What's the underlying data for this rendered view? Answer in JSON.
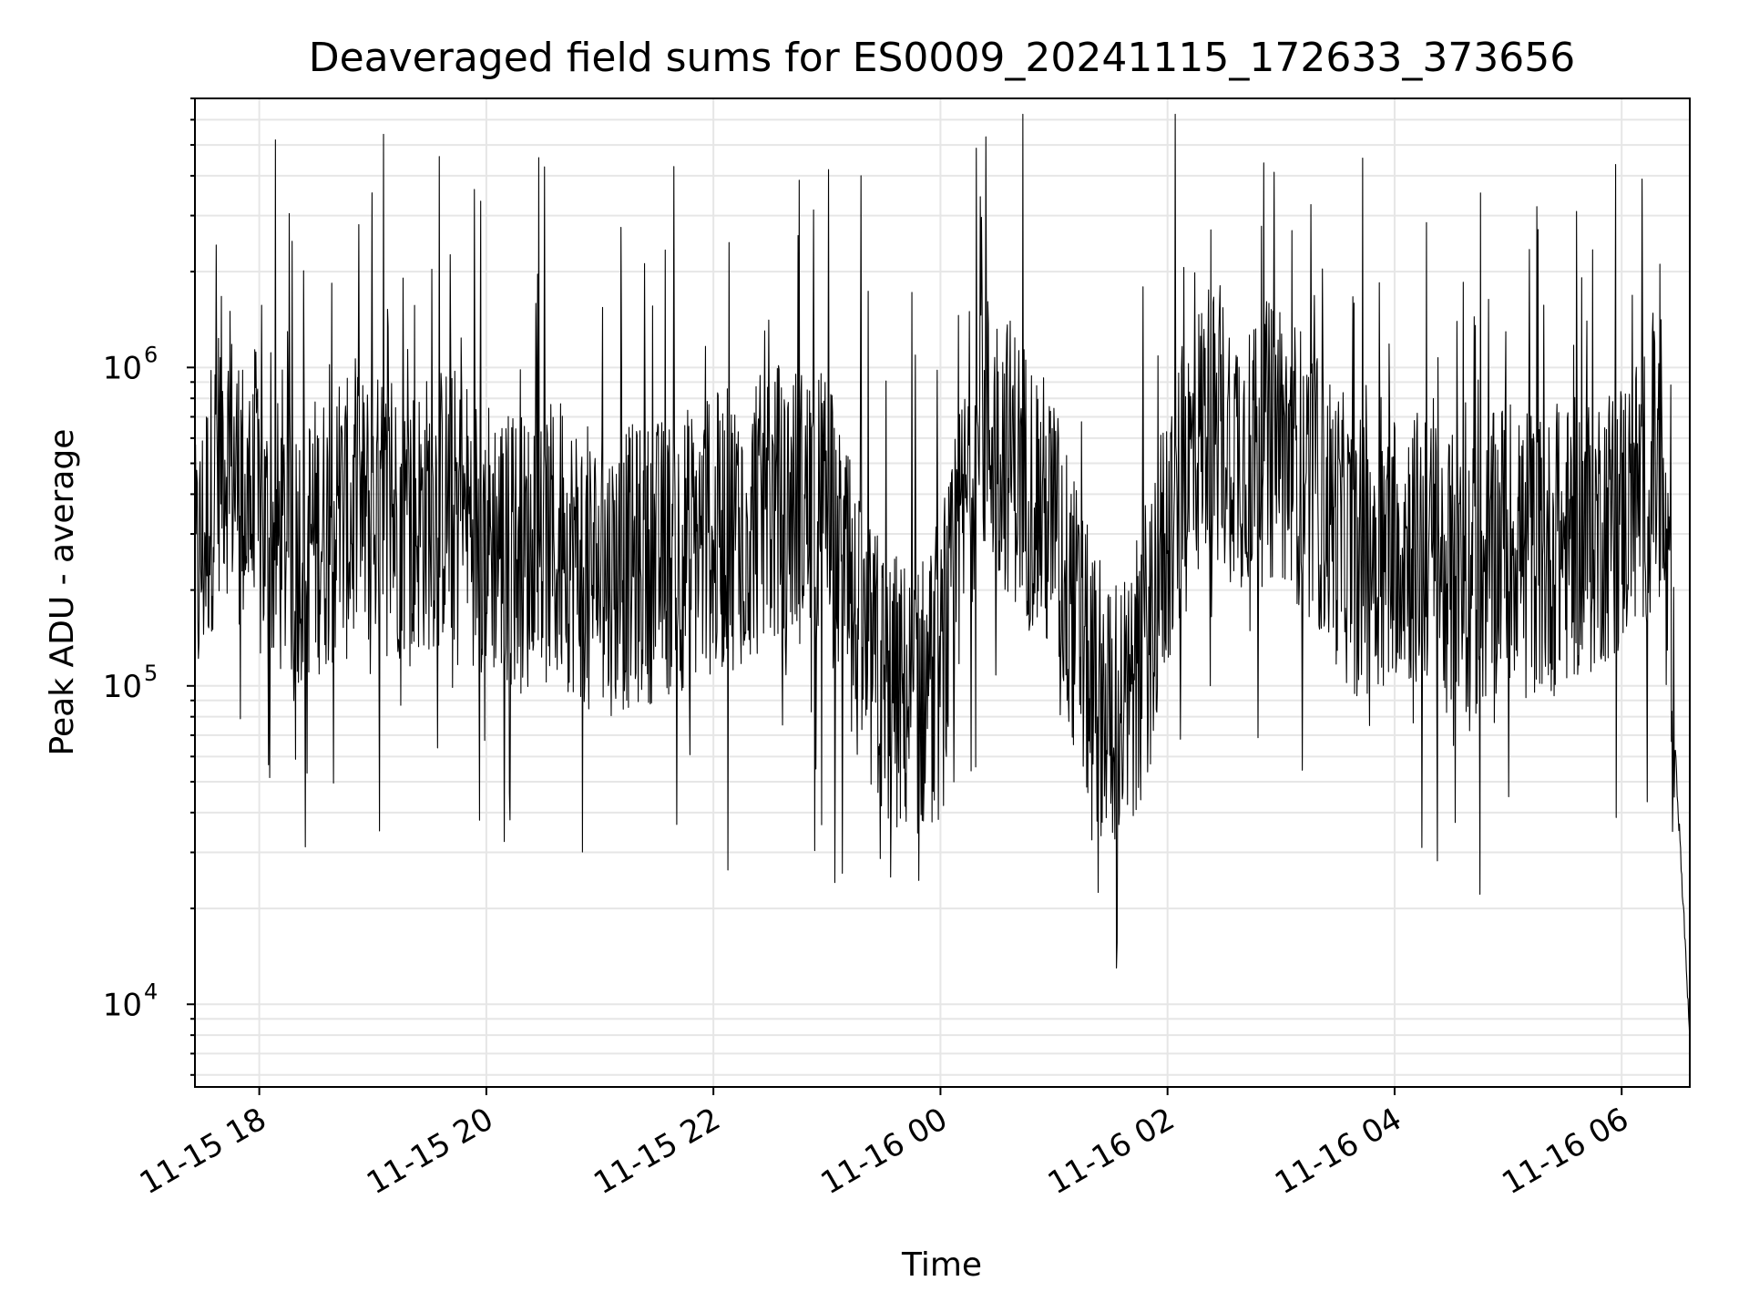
{
  "chart_data": {
    "type": "line",
    "title": "Deaveraged field sums for ES0009_20241115_172633_373656",
    "xlabel": "Time",
    "ylabel": "Peak ADU - average",
    "x_tick_labels": [
      "11-15 18",
      "11-15 20",
      "11-15 22",
      "11-16 00",
      "11-16 02",
      "11-16 04",
      "11-16 06"
    ],
    "xlim": [
      "2024-11-15 17:26",
      "2024-11-16 06:36"
    ],
    "yscale": "log",
    "ylim": [
      5500,
      7000000
    ],
    "y_tick_labels": [
      {
        "base": "10",
        "exp": "4",
        "value": 10000
      },
      {
        "base": "10",
        "exp": "5",
        "value": 100000
      },
      {
        "base": "10",
        "exp": "6",
        "value": 1000000
      }
    ],
    "grid": true,
    "line_color": "#000000",
    "grid_color": "#e6e6e6",
    "series": [
      {
        "x": [
          "2024-11-15 17:26",
          "2024-11-15 17:40",
          "2024-11-15 18:00",
          "2024-11-15 18:20",
          "2024-11-15 18:40",
          "2024-11-15 19:00",
          "2024-11-15 19:20",
          "2024-11-15 19:40",
          "2024-11-15 20:00",
          "2024-11-15 20:20",
          "2024-11-15 20:40",
          "2024-11-15 21:00",
          "2024-11-15 21:20",
          "2024-11-15 21:40",
          "2024-11-15 22:00",
          "2024-11-15 22:20",
          "2024-11-15 22:40",
          "2024-11-15 23:00",
          "2024-11-15 23:20",
          "2024-11-15 23:40",
          "2024-11-16 00:00",
          "2024-11-16 00:20",
          "2024-11-16 00:40",
          "2024-11-16 01:00",
          "2024-11-16 01:20",
          "2024-11-16 01:40",
          "2024-11-16 02:00",
          "2024-11-16 02:20",
          "2024-11-16 02:40",
          "2024-11-16 03:00",
          "2024-11-16 03:20",
          "2024-11-16 03:40",
          "2024-11-16 04:00",
          "2024-11-16 04:20",
          "2024-11-16 04:40",
          "2024-11-16 05:00",
          "2024-11-16 05:20",
          "2024-11-16 05:40",
          "2024-11-16 06:00",
          "2024-11-16 06:20",
          "2024-11-16 06:30",
          "2024-11-16 06:36"
        ],
        "y": [
          200000,
          600000,
          300000,
          280000,
          320000,
          350000,
          330000,
          380000,
          300000,
          260000,
          280000,
          220000,
          240000,
          260000,
          300000,
          330000,
          380000,
          350000,
          120000,
          90000,
          100000,
          700000,
          500000,
          300000,
          100000,
          80000,
          300000,
          700000,
          550000,
          600000,
          400000,
          250000,
          300000,
          250000,
          200000,
          300000,
          250000,
          300000,
          350000,
          500000,
          40000,
          8000
        ]
      }
    ],
    "annotated_extremes": [
      {
        "x": "2024-11-15 23:18",
        "y": 4000000
      },
      {
        "x": "2024-11-16 00:24",
        "y": 5300000
      },
      {
        "x": "2024-11-16 01:33",
        "y": 13000
      }
    ]
  }
}
